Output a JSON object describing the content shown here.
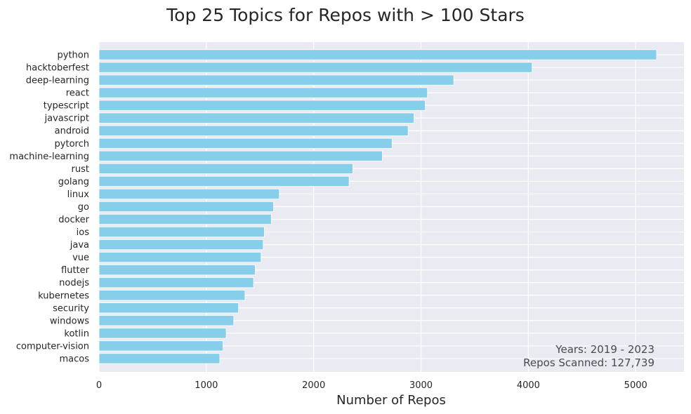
{
  "chart_data": {
    "type": "bar",
    "orientation": "horizontal",
    "title": "Top 25 Topics for Repos with > 100 Stars",
    "xlabel": "Number of Repos",
    "ylabel": "",
    "xlim": [
      0,
      5450
    ],
    "x_ticks": [
      0,
      1000,
      2000,
      3000,
      4000,
      5000
    ],
    "categories": [
      "python",
      "hacktoberfest",
      "deep-learning",
      "react",
      "typescript",
      "javascript",
      "android",
      "pytorch",
      "machine-learning",
      "rust",
      "golang",
      "linux",
      "go",
      "docker",
      "ios",
      "java",
      "vue",
      "flutter",
      "nodejs",
      "kubernetes",
      "security",
      "windows",
      "kotlin",
      "computer-vision",
      "macos"
    ],
    "values": [
      5195,
      4035,
      3305,
      3060,
      3040,
      2935,
      2880,
      2730,
      2640,
      2365,
      2330,
      1680,
      1625,
      1605,
      1540,
      1530,
      1510,
      1455,
      1440,
      1360,
      1300,
      1255,
      1185,
      1155,
      1125
    ],
    "bar_color": "#87CEEB",
    "background_color": "#EAEAF2",
    "grid": true,
    "annotations": [
      "Years: 2019 - 2023",
      "Repos Scanned: 127,739"
    ],
    "annotation_position": "bottom-right"
  }
}
